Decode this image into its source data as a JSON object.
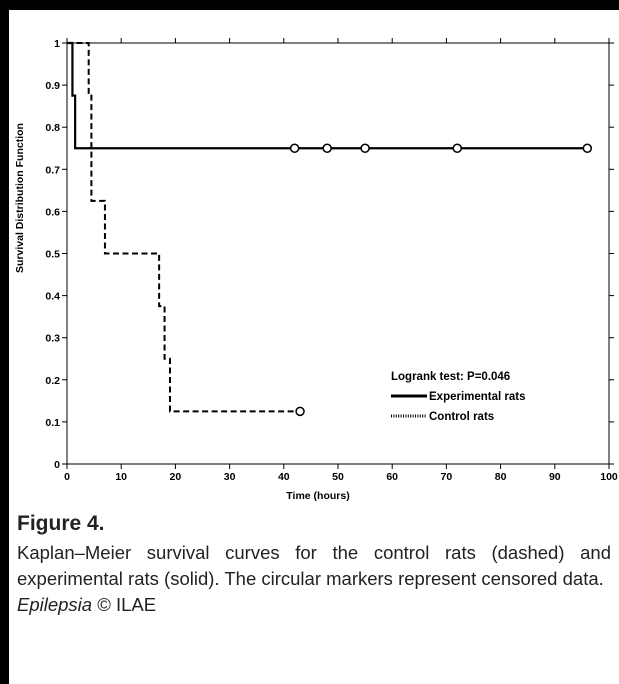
{
  "chart_data": {
    "type": "line",
    "xlabel": "Time (hours)",
    "ylabel": "Survival Distribution Function",
    "xlim": [
      0,
      100
    ],
    "ylim": [
      0,
      1
    ],
    "x_ticks": [
      "0",
      "10",
      "20",
      "30",
      "40",
      "50",
      "60",
      "70",
      "80",
      "90",
      "100"
    ],
    "y_ticks": [
      "0",
      "0.1",
      "0.2",
      "0.3",
      "0.4",
      "0.5",
      "0.6",
      "0.7",
      "0.8",
      "0.9",
      "1"
    ],
    "annotation": "Logrank test: P=0.046",
    "legend_position": "bottom-right",
    "series": [
      {
        "name": "Experimental rats",
        "style": "solid",
        "color": "#000000",
        "steps": [
          [
            0,
            1
          ],
          [
            1,
            0.875
          ],
          [
            1.5,
            0.75
          ],
          [
            96,
            0.75
          ]
        ],
        "censored": [
          [
            42,
            0.75
          ],
          [
            48,
            0.75
          ],
          [
            55,
            0.75
          ],
          [
            72,
            0.75
          ],
          [
            96,
            0.75
          ]
        ]
      },
      {
        "name": "Control rats",
        "style": "dashed",
        "color": "#000000",
        "steps": [
          [
            0,
            1
          ],
          [
            4,
            0.875
          ],
          [
            4.5,
            0.625
          ],
          [
            7,
            0.5
          ],
          [
            17,
            0.375
          ],
          [
            18,
            0.25
          ],
          [
            19,
            0.125
          ],
          [
            43,
            0.125
          ]
        ],
        "censored": [
          [
            43,
            0.125
          ]
        ]
      }
    ]
  },
  "caption": {
    "title": "Figure 4.",
    "text": "Kaplan–Meier survival curves for the control rats (dashed) and experimental rats (solid). The circular markers represent censored data.",
    "journal": "Epilepsia",
    "copyright": "© ILAE"
  }
}
